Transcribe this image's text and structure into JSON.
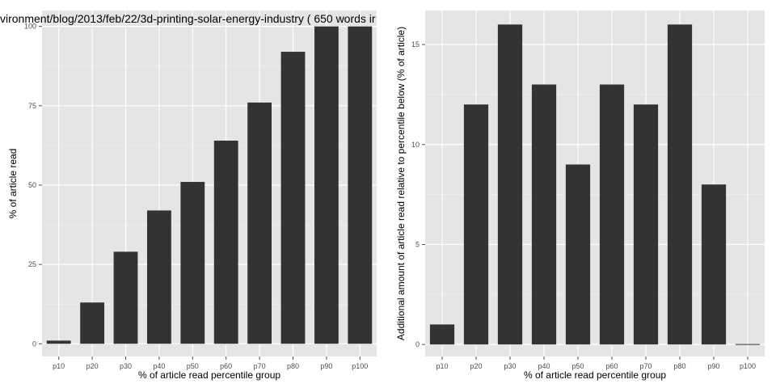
{
  "colors": {
    "panel_bg": "#e5e5e5",
    "grid_major": "#ffffff",
    "grid_minor": "#f2f2f2",
    "bar": "#333333",
    "tick_text": "#4d4d4d",
    "text": "#000000"
  },
  "chart_data": [
    {
      "type": "bar",
      "title": "vironment/blog/2013/feb/22/3d-printing-solar-energy-industry ( 650 words ir",
      "xlabel": "% of article read percentile group",
      "ylabel": "% of article read",
      "categories": [
        "p10",
        "p20",
        "p30",
        "p40",
        "p50",
        "p60",
        "p70",
        "p80",
        "p90",
        "p100"
      ],
      "values": [
        1,
        13,
        29,
        42,
        51,
        64,
        76,
        92,
        100,
        100
      ],
      "ylim": [
        -4,
        105
      ],
      "yticks": [
        0,
        25,
        50,
        75,
        100
      ],
      "grid": true,
      "legend": "none"
    },
    {
      "type": "bar",
      "title": "",
      "xlabel": "% of article read percentile group",
      "ylabel": "Additional amount of article read relative to percentile below (% of article)",
      "categories": [
        "p10",
        "p20",
        "p30",
        "p40",
        "p50",
        "p60",
        "p70",
        "p80",
        "p90",
        "p100"
      ],
      "values": [
        1,
        12,
        16,
        13,
        9,
        13,
        12,
        16,
        8,
        0
      ],
      "ylim": [
        -0.6,
        16.7
      ],
      "yticks": [
        0,
        5,
        10,
        15
      ],
      "grid": true,
      "legend": "none"
    }
  ]
}
